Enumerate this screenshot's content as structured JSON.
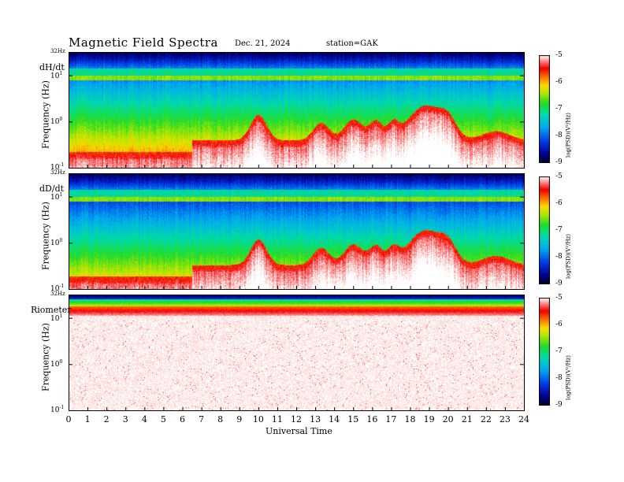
{
  "header": {
    "title": "Magnetic  Field  Spectra",
    "date": "Dec. 21, 2024",
    "station": "station=GAK"
  },
  "colorbar": {
    "tick_labels": [
      "-5",
      "-6",
      "-7",
      "-8",
      "-9"
    ],
    "title": "log(PSD)(V²/Hz)",
    "range": [
      -9,
      -5
    ]
  },
  "x_axis": {
    "title": "Universal Time",
    "ticks": [
      "0",
      "1",
      "2",
      "3",
      "4",
      "5",
      "6",
      "7",
      "8",
      "9",
      "10",
      "11",
      "12",
      "13",
      "14",
      "15",
      "16",
      "17",
      "18",
      "19",
      "20",
      "21",
      "22",
      "23",
      "24"
    ]
  },
  "chart_data": [
    {
      "type": "heatmap",
      "panel_label": "dH/dt",
      "ylabel": "Frequency  (Hz)",
      "y_tick_labels": {
        "top": "32Hz",
        "upper": "10",
        "mid": "10",
        "low": "10"
      },
      "y_tick_exponents": {
        "upper": "1",
        "mid": "0",
        "low": "-1"
      },
      "yscale": "log",
      "ylim": [
        0.1,
        32
      ],
      "xlim": [
        0,
        24
      ],
      "colorbar_label": "log(PSD)(V²/Hz)",
      "colorbar_range": [
        -9,
        -5
      ]
    },
    {
      "type": "heatmap",
      "panel_label": "dD/dt",
      "ylabel": "Frequency  (Hz)",
      "y_tick_labels": {
        "top": "32Hz",
        "upper": "10",
        "mid": "10",
        "low": "10"
      },
      "y_tick_exponents": {
        "upper": "1",
        "mid": "0",
        "low": "-1"
      },
      "yscale": "log",
      "ylim": [
        0.1,
        32
      ],
      "xlim": [
        0,
        24
      ],
      "colorbar_label": "log(PSD)(V²/Hz)",
      "colorbar_range": [
        -9,
        -5
      ]
    },
    {
      "type": "heatmap",
      "panel_label": "Riometer",
      "ylabel": "Frequency  (Hz)",
      "y_tick_labels": {
        "top": "32Hz",
        "upper": "10",
        "mid": "10",
        "low": "10"
      },
      "y_tick_exponents": {
        "upper": "1",
        "mid": "0",
        "low": "-1"
      },
      "yscale": "log",
      "ylim": [
        0.1,
        32
      ],
      "xlim": [
        0,
        24
      ],
      "colorbar_label": "log(PSD)(V²/Hz)",
      "colorbar_range": [
        -9,
        -5
      ]
    }
  ]
}
